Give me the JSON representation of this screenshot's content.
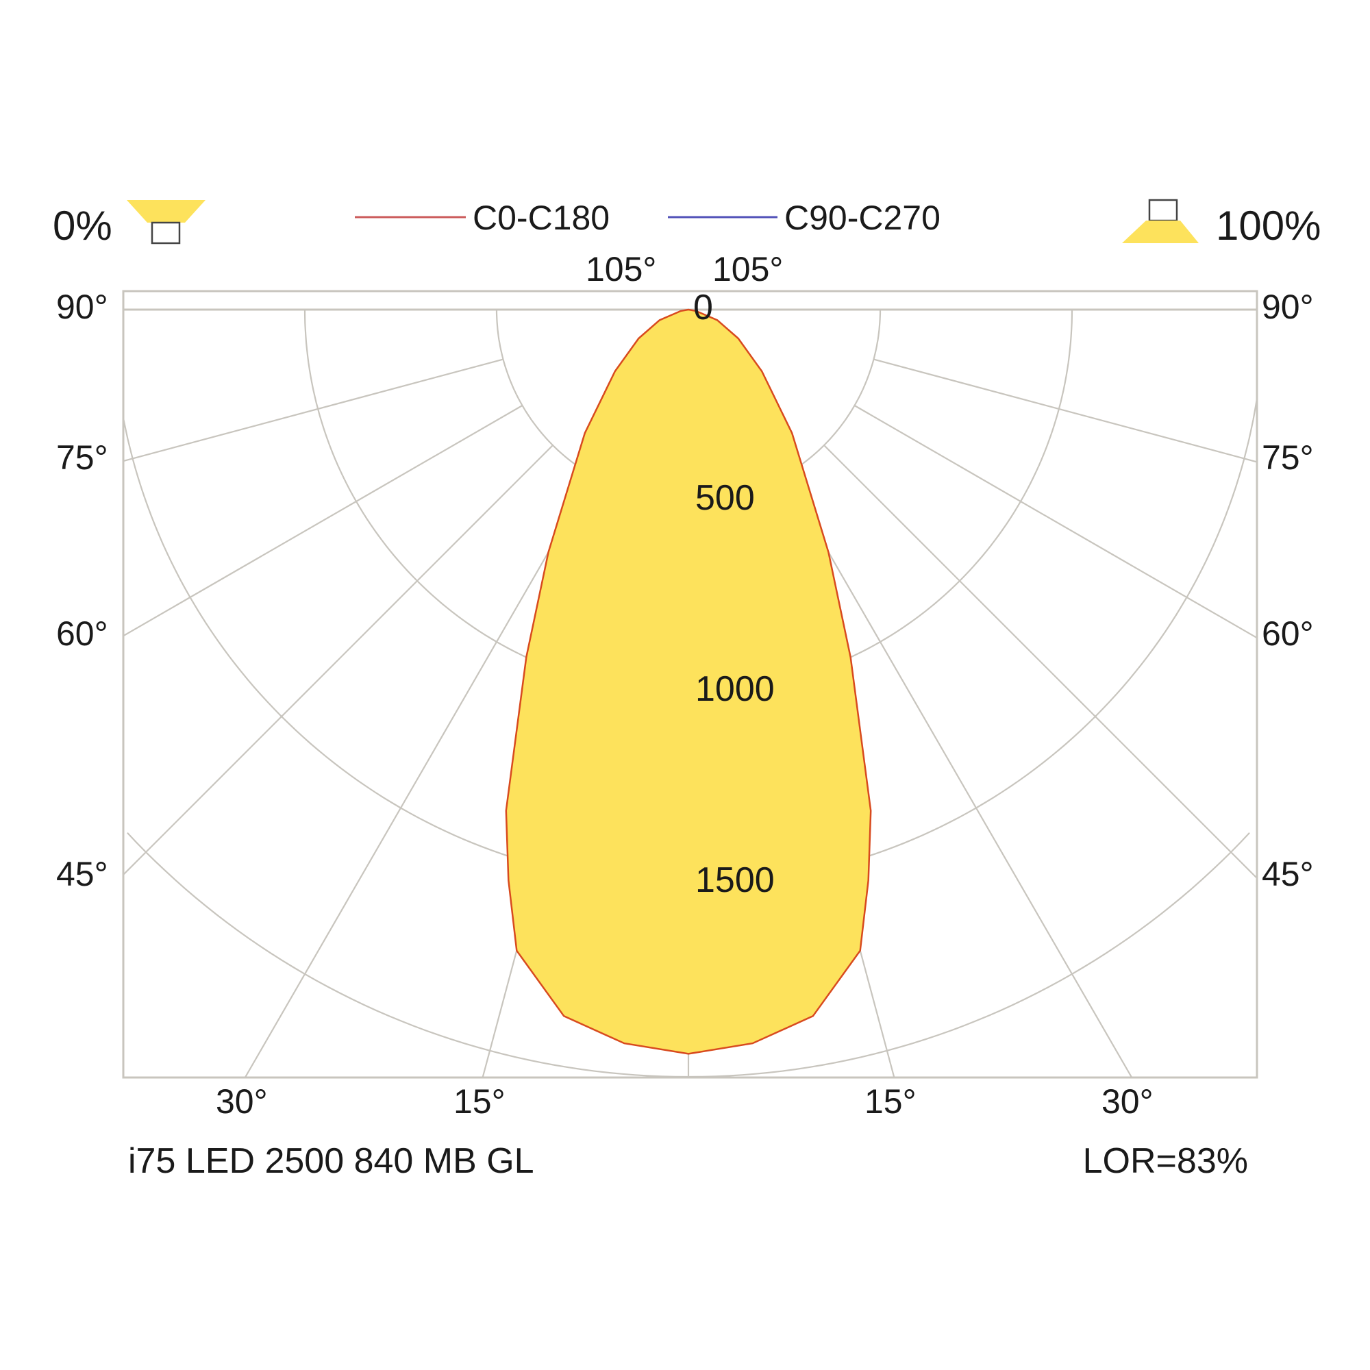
{
  "chart_data": {
    "type": "polar",
    "title": "",
    "product_label": "i75 LED 2500 840 MB GL",
    "lor_label": "LOR=83%",
    "downlight_label": "0%",
    "uplight_label": "100%",
    "legend": [
      {
        "name": "C0-C180",
        "color": "#cc5c5c"
      },
      {
        "name": "C90-C270",
        "color": "#5252b8"
      }
    ],
    "radial_ticks": [
      0,
      500,
      1000,
      1500
    ],
    "radial_tick_labels": [
      "0",
      "500",
      "1000",
      "1500"
    ],
    "radius_max": 2000,
    "angle_ticks_top": [
      "105°",
      "105°"
    ],
    "angle_ticks_side": [
      "90°",
      "75°",
      "60°",
      "45°"
    ],
    "angle_ticks_bottom": [
      "30°",
      "15°",
      "15°",
      "30°"
    ],
    "spoke_angles": [
      15,
      30,
      45,
      60,
      75,
      90,
      105
    ],
    "fill_color": "#fde25c",
    "outline_color": "#d84a1e",
    "series": [
      {
        "name": "C0-C180",
        "unit": "cd",
        "angles": [
          0,
          5,
          10,
          15,
          17.5,
          20,
          25,
          30,
          40,
          50,
          60,
          70,
          80,
          90
        ],
        "values": [
          1940,
          1920,
          1870,
          1730,
          1560,
          1390,
          1000,
          730,
          420,
          250,
          150,
          80,
          20,
          0
        ]
      },
      {
        "name": "C90-C270",
        "unit": "cd",
        "angles": [
          0,
          5,
          10,
          15,
          17.5,
          20,
          25,
          30,
          40,
          50,
          60,
          70,
          80,
          90
        ],
        "values": [
          1940,
          1920,
          1870,
          1730,
          1560,
          1390,
          1000,
          730,
          420,
          250,
          150,
          80,
          20,
          0
        ]
      }
    ]
  }
}
